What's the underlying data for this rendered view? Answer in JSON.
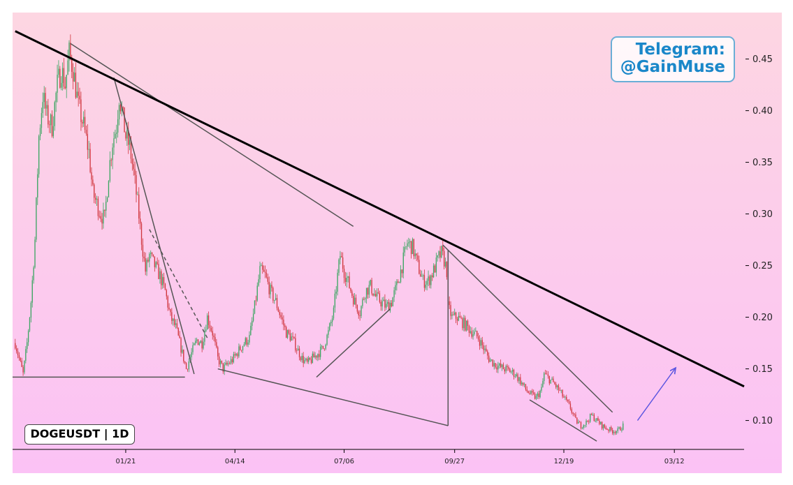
{
  "symbol_label": "DOGEUSDT | 1D",
  "watermark": {
    "line1": "Telegram:",
    "line2": "@GainMuse"
  },
  "colors": {
    "background_top": "#fdd6e2",
    "background_bottom": "#fbc2f5",
    "candle_up": "#3aa561",
    "candle_down": "#d0353c",
    "trendline_main": "#000000",
    "pattern_lines": "#555555",
    "projection_arrow": "#5a55e0"
  },
  "chart_data": {
    "type": "candlestick",
    "symbol": "DOGEUSDT",
    "timeframe": "1D",
    "x_axis": {
      "tick_labels": [
        "01/21",
        "04/14",
        "07/06",
        "09/27",
        "12/19",
        "03/12"
      ],
      "tick_days": [
        0,
        83,
        166,
        250,
        333,
        417
      ]
    },
    "y_axis": {
      "side": "right",
      "tick_labels": [
        "0.10",
        "0.15",
        "0.20",
        "0.25",
        "0.30",
        "0.35",
        "0.40",
        "0.45"
      ],
      "tick_values": [
        0.1,
        0.15,
        0.2,
        0.25,
        0.3,
        0.35,
        0.4,
        0.45
      ],
      "range": [
        0.072,
        0.495
      ]
    },
    "x_range_days": [
      -86,
      470
    ],
    "price_path": [
      [
        -84,
        0.175
      ],
      [
        -80,
        0.155
      ],
      [
        -78,
        0.145
      ],
      [
        -75,
        0.175
      ],
      [
        -72,
        0.215
      ],
      [
        -69,
        0.275
      ],
      [
        -66,
        0.375
      ],
      [
        -63,
        0.415
      ],
      [
        -60,
        0.395
      ],
      [
        -56,
        0.385
      ],
      [
        -52,
        0.425
      ],
      [
        -49,
        0.44
      ],
      [
        -46,
        0.425
      ],
      [
        -43,
        0.455
      ],
      [
        -40,
        0.44
      ],
      [
        -36,
        0.405
      ],
      [
        -32,
        0.385
      ],
      [
        -28,
        0.36
      ],
      [
        -25,
        0.32
      ],
      [
        -22,
        0.31
      ],
      [
        -19,
        0.3
      ],
      [
        -16,
        0.295
      ],
      [
        -13,
        0.34
      ],
      [
        -10,
        0.37
      ],
      [
        -7,
        0.385
      ],
      [
        -5,
        0.415
      ],
      [
        -3,
        0.4
      ],
      [
        0,
        0.375
      ],
      [
        3,
        0.365
      ],
      [
        6,
        0.34
      ],
      [
        9,
        0.31
      ],
      [
        12,
        0.275
      ],
      [
        15,
        0.245
      ],
      [
        18,
        0.26
      ],
      [
        22,
        0.25
      ],
      [
        26,
        0.24
      ],
      [
        30,
        0.225
      ],
      [
        34,
        0.2
      ],
      [
        38,
        0.19
      ],
      [
        42,
        0.17
      ],
      [
        46,
        0.15
      ],
      [
        50,
        0.165
      ],
      [
        54,
        0.178
      ],
      [
        58,
        0.175
      ],
      [
        62,
        0.2
      ],
      [
        66,
        0.185
      ],
      [
        70,
        0.16
      ],
      [
        74,
        0.15
      ],
      [
        78,
        0.155
      ],
      [
        82,
        0.16
      ],
      [
        86,
        0.168
      ],
      [
        90,
        0.175
      ],
      [
        94,
        0.18
      ],
      [
        98,
        0.21
      ],
      [
        102,
        0.245
      ],
      [
        106,
        0.24
      ],
      [
        110,
        0.225
      ],
      [
        114,
        0.215
      ],
      [
        118,
        0.2
      ],
      [
        122,
        0.185
      ],
      [
        126,
        0.18
      ],
      [
        130,
        0.17
      ],
      [
        134,
        0.16
      ],
      [
        138,
        0.155
      ],
      [
        142,
        0.16
      ],
      [
        146,
        0.165
      ],
      [
        150,
        0.17
      ],
      [
        154,
        0.185
      ],
      [
        158,
        0.205
      ],
      [
        161,
        0.24
      ],
      [
        163,
        0.26
      ],
      [
        166,
        0.245
      ],
      [
        170,
        0.23
      ],
      [
        174,
        0.215
      ],
      [
        178,
        0.205
      ],
      [
        182,
        0.225
      ],
      [
        186,
        0.23
      ],
      [
        190,
        0.22
      ],
      [
        194,
        0.215
      ],
      [
        198,
        0.21
      ],
      [
        202,
        0.215
      ],
      [
        206,
        0.23
      ],
      [
        210,
        0.25
      ],
      [
        214,
        0.272
      ],
      [
        218,
        0.268
      ],
      [
        222,
        0.25
      ],
      [
        226,
        0.235
      ],
      [
        230,
        0.235
      ],
      [
        234,
        0.245
      ],
      [
        238,
        0.258
      ],
      [
        240,
        0.262
      ],
      [
        242,
        0.255
      ],
      [
        244,
        0.245
      ],
      [
        245,
        0.21
      ],
      [
        248,
        0.2
      ],
      [
        252,
        0.2
      ],
      [
        256,
        0.195
      ],
      [
        260,
        0.19
      ],
      [
        264,
        0.185
      ],
      [
        268,
        0.18
      ],
      [
        272,
        0.17
      ],
      [
        276,
        0.16
      ],
      [
        280,
        0.155
      ],
      [
        284,
        0.152
      ],
      [
        288,
        0.15
      ],
      [
        292,
        0.148
      ],
      [
        296,
        0.145
      ],
      [
        300,
        0.138
      ],
      [
        304,
        0.13
      ],
      [
        308,
        0.125
      ],
      [
        312,
        0.122
      ],
      [
        316,
        0.13
      ],
      [
        318,
        0.145
      ],
      [
        322,
        0.14
      ],
      [
        326,
        0.135
      ],
      [
        330,
        0.128
      ],
      [
        334,
        0.12
      ],
      [
        338,
        0.112
      ],
      [
        342,
        0.1
      ],
      [
        346,
        0.095
      ],
      [
        350,
        0.098
      ],
      [
        354,
        0.105
      ],
      [
        358,
        0.1
      ],
      [
        362,
        0.095
      ],
      [
        366,
        0.092
      ],
      [
        370,
        0.09
      ],
      [
        374,
        0.09
      ],
      [
        378,
        0.095
      ]
    ],
    "annotations": {
      "main_trendline": {
        "from": [
          -84,
          0.477
        ],
        "to": [
          470,
          0.133
        ]
      },
      "pattern_lines": [
        {
          "from": [
            -86,
            0.142
          ],
          "to": [
            45,
            0.142
          ]
        },
        {
          "from": [
            -42,
            0.465
          ],
          "to": [
            173,
            0.288
          ]
        },
        {
          "from": [
            -9,
            0.432
          ],
          "to": [
            52,
            0.145
          ]
        },
        {
          "from": [
            70,
            0.15
          ],
          "to": [
            245,
            0.095
          ]
        },
        {
          "from": [
            145,
            0.142
          ],
          "to": [
            201,
            0.208
          ]
        },
        {
          "from": [
            245,
            0.095
          ],
          "to": [
            245,
            0.265
          ]
        },
        {
          "from": [
            241,
            0.27
          ],
          "to": [
            370,
            0.108
          ]
        },
        {
          "from": [
            307,
            0.12
          ],
          "to": [
            358,
            0.08
          ]
        },
        {
          "from": [
            18,
            0.285
          ],
          "to": [
            62,
            0.18
          ],
          "dashed": true
        }
      ],
      "projection_arrow": {
        "from": [
          389,
          0.1
        ],
        "to": [
          418,
          0.151
        ]
      }
    }
  }
}
